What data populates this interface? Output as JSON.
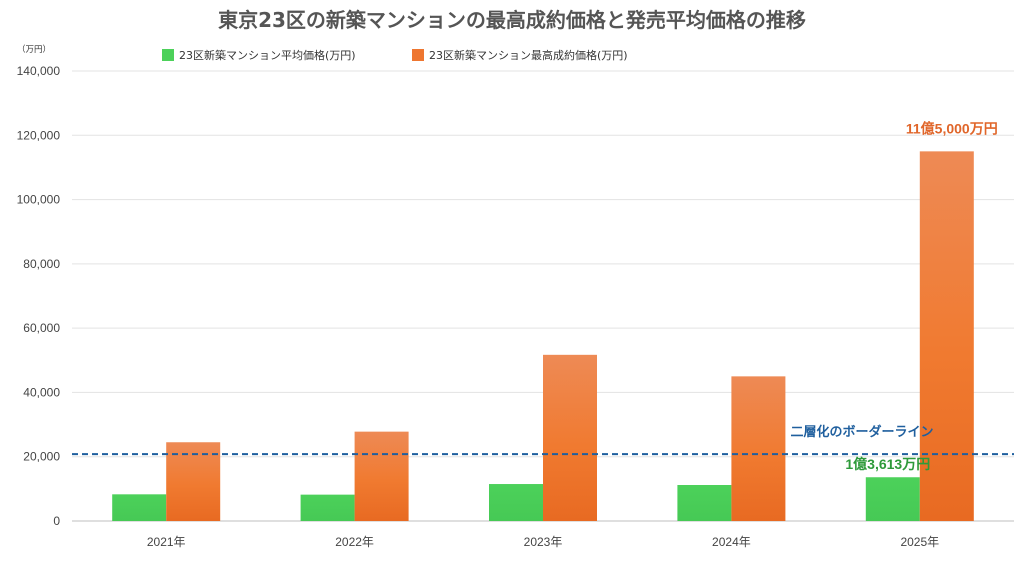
{
  "chart_data": {
    "type": "bar",
    "title": "東京23区の新築マンションの最高成約価格と発売平均価格の推移",
    "unit_label": "（万円）",
    "categories": [
      "2021年",
      "2022年",
      "2023年",
      "2024年",
      "2025年"
    ],
    "series": [
      {
        "name": "23区新築マンション平均価格(万円)",
        "color": "#4cd15a",
        "values": [
          8300,
          8200,
          11500,
          11200,
          13613
        ]
      },
      {
        "name": "23区新築マンション最高成約価格(万円)",
        "color": "#ee7630",
        "values": [
          24500,
          27800,
          51700,
          45000,
          115000
        ]
      }
    ],
    "ylim": [
      0,
      140000
    ],
    "yticks": [
      0,
      20000,
      40000,
      60000,
      80000,
      100000,
      120000,
      140000
    ],
    "ytick_labels": [
      "0",
      "20,000",
      "40,000",
      "60,000",
      "80,000",
      "100,000",
      "120,000",
      "140,000"
    ],
    "grid": true,
    "legend_position": "top",
    "reference_line": {
      "value": 20800,
      "label": "二層化のボーダーライン",
      "color": "#1f5f9e",
      "style": "dashed"
    },
    "annotations": [
      {
        "text": "11億5,000万円",
        "series": 1,
        "category": 4,
        "color": "#e0662a"
      },
      {
        "text": "1億3,613万円",
        "series": 0,
        "category": 4,
        "color": "#2e9a3a"
      }
    ]
  }
}
